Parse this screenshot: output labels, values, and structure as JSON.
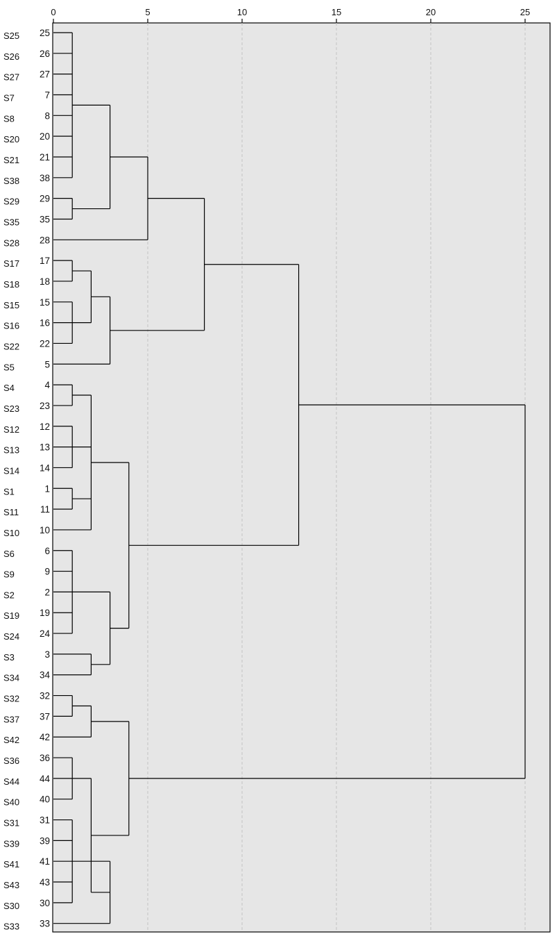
{
  "chart_data": {
    "type": "dendrogram",
    "title": "",
    "xlabel": "",
    "ylabel": "",
    "xlim": [
      0,
      25
    ],
    "x_ticks": [
      0,
      5,
      10,
      15,
      20,
      25
    ],
    "grid": "vertical dashed at ticks",
    "rows": [
      {
        "label": "S25",
        "leaf": "25"
      },
      {
        "label": "S26",
        "leaf": "26"
      },
      {
        "label": "S27",
        "leaf": "27"
      },
      {
        "label": "S7",
        "leaf": "7"
      },
      {
        "label": "S8",
        "leaf": "8"
      },
      {
        "label": "S20",
        "leaf": "20"
      },
      {
        "label": "S21",
        "leaf": "21"
      },
      {
        "label": "S38",
        "leaf": "38"
      },
      {
        "label": "S29",
        "leaf": "29"
      },
      {
        "label": "S35",
        "leaf": "35"
      },
      {
        "label": "S28",
        "leaf": "28"
      },
      {
        "label": "S17",
        "leaf": "17"
      },
      {
        "label": "S18",
        "leaf": "18"
      },
      {
        "label": "S15",
        "leaf": "15"
      },
      {
        "label": "S16",
        "leaf": "16"
      },
      {
        "label": "S22",
        "leaf": "22"
      },
      {
        "label": "S5",
        "leaf": "5"
      },
      {
        "label": "S4",
        "leaf": "4"
      },
      {
        "label": "S23",
        "leaf": "23"
      },
      {
        "label": "S12",
        "leaf": "12"
      },
      {
        "label": "S13",
        "leaf": "13"
      },
      {
        "label": "S14",
        "leaf": "14"
      },
      {
        "label": "S1",
        "leaf": "1"
      },
      {
        "label": "S11",
        "leaf": "11"
      },
      {
        "label": "S10",
        "leaf": "10"
      },
      {
        "label": "S6",
        "leaf": "6"
      },
      {
        "label": "S9",
        "leaf": "9"
      },
      {
        "label": "S2",
        "leaf": "2"
      },
      {
        "label": "S19",
        "leaf": "19"
      },
      {
        "label": "S24",
        "leaf": "24"
      },
      {
        "label": "S3",
        "leaf": "3"
      },
      {
        "label": "S34",
        "leaf": "34"
      },
      {
        "label": "S32",
        "leaf": "32"
      },
      {
        "label": "S37",
        "leaf": "37"
      },
      {
        "label": "S42",
        "leaf": "42"
      },
      {
        "label": "S36",
        "leaf": "36"
      },
      {
        "label": "S44",
        "leaf": "44"
      },
      {
        "label": "S40",
        "leaf": "40"
      },
      {
        "label": "S31",
        "leaf": "31"
      },
      {
        "label": "S39",
        "leaf": "39"
      },
      {
        "label": "S41",
        "leaf": "41"
      },
      {
        "label": "S43",
        "leaf": "43"
      },
      {
        "label": "S30",
        "leaf": "30"
      },
      {
        "label": "S33",
        "leaf": "33"
      }
    ],
    "merges": [
      {
        "id": "A",
        "height": 1,
        "children": [
          "25",
          "26",
          "27",
          "7",
          "8",
          "20",
          "21",
          "38"
        ]
      },
      {
        "id": "B",
        "height": 1,
        "children": [
          "29",
          "35"
        ]
      },
      {
        "id": "C",
        "height": 3,
        "children": [
          "A",
          "B"
        ]
      },
      {
        "id": "D",
        "height": 5,
        "children": [
          "C",
          "28"
        ]
      },
      {
        "id": "E",
        "height": 1,
        "children": [
          "17",
          "18"
        ]
      },
      {
        "id": "F",
        "height": 1,
        "children": [
          "15",
          "16",
          "22"
        ]
      },
      {
        "id": "G",
        "height": 2,
        "children": [
          "E",
          "F"
        ]
      },
      {
        "id": "H",
        "height": 3,
        "children": [
          "G",
          "5"
        ]
      },
      {
        "id": "I",
        "height": 8,
        "children": [
          "D",
          "H"
        ]
      },
      {
        "id": "J",
        "height": 1,
        "children": [
          "4",
          "23"
        ]
      },
      {
        "id": "K",
        "height": 1,
        "children": [
          "12",
          "13",
          "14"
        ]
      },
      {
        "id": "L",
        "height": 1,
        "children": [
          "1",
          "11"
        ]
      },
      {
        "id": "M",
        "height": 2,
        "children": [
          "J",
          "K",
          "L",
          "10"
        ]
      },
      {
        "id": "N",
        "height": 1,
        "children": [
          "6",
          "9",
          "2",
          "19",
          "24"
        ]
      },
      {
        "id": "O",
        "height": 2,
        "children": [
          "3",
          "34"
        ]
      },
      {
        "id": "P",
        "height": 3,
        "children": [
          "N",
          "O"
        ]
      },
      {
        "id": "Q",
        "height": 4,
        "children": [
          "M",
          "P"
        ]
      },
      {
        "id": "R",
        "height": 13,
        "children": [
          "I",
          "Q"
        ]
      },
      {
        "id": "S",
        "height": 1,
        "children": [
          "32",
          "37"
        ]
      },
      {
        "id": "T",
        "height": 2,
        "children": [
          "S",
          "42"
        ]
      },
      {
        "id": "U",
        "height": 1,
        "children": [
          "36",
          "44",
          "40"
        ]
      },
      {
        "id": "V",
        "height": 1,
        "children": [
          "31",
          "39",
          "41",
          "43",
          "30"
        ]
      },
      {
        "id": "W",
        "height": 3,
        "children": [
          "V",
          "33"
        ]
      },
      {
        "id": "X",
        "height": 2,
        "children": [
          "U",
          "W"
        ]
      },
      {
        "id": "Y",
        "height": 4,
        "children": [
          "T",
          "X"
        ]
      },
      {
        "id": "Z",
        "height": 25,
        "children": [
          "R",
          "Y"
        ]
      }
    ]
  }
}
